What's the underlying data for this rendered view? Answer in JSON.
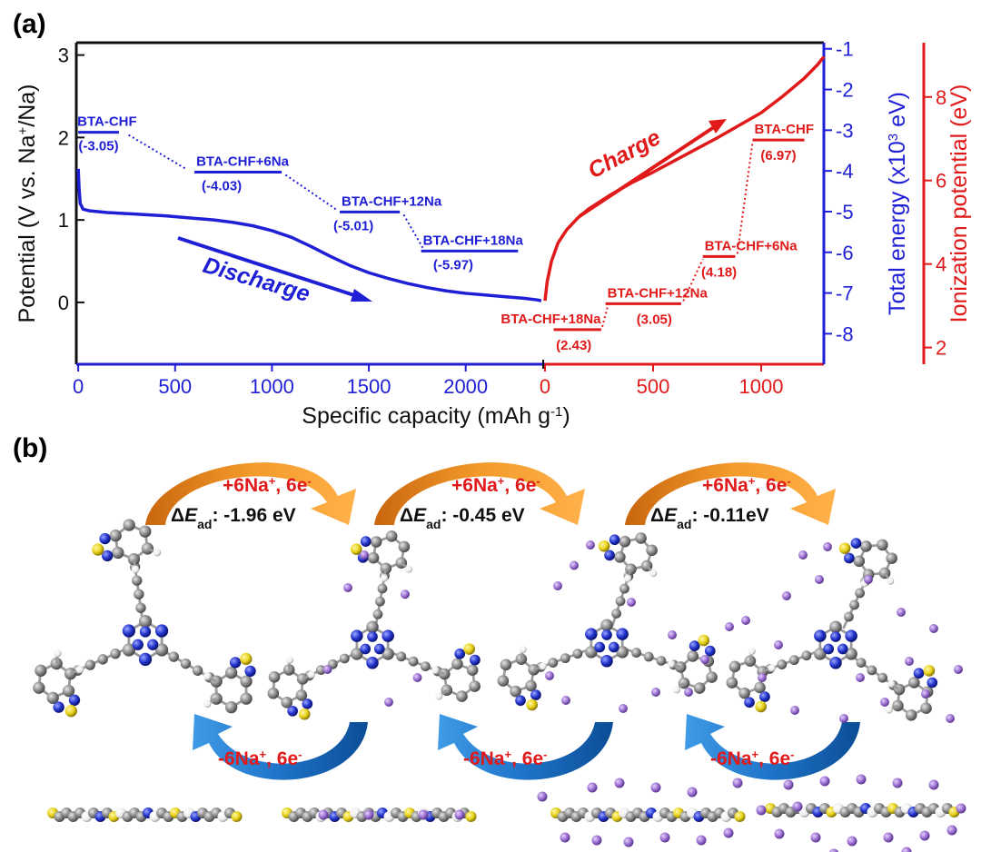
{
  "panel_a_label": "(a)",
  "panel_b_label": "(b)",
  "chart_data": {
    "type": "line",
    "title": "",
    "xlabel": "Specific capacity (mAh g-1)",
    "xlabel_parts": {
      "main": "Specific capacity (mAh g",
      "sup": "-1",
      "close": ")"
    },
    "ylabel_left": "Potential (V vs. Na+/Na)",
    "ylabel_left_parts": {
      "main": "Potential (V vs. Na",
      "sup": "+",
      "close": "/Na)"
    },
    "ylabel_mid": "Total energy (x103 eV)",
    "ylabel_mid_parts": {
      "main": "Total energy (x10",
      "sup": "3",
      "close": " eV)"
    },
    "ylabel_right": "Ionization potential (eV)",
    "ylim_left": [
      -0.75,
      3.15
    ],
    "ylim_mid": [
      -8.75,
      -0.85
    ],
    "ylim_right": [
      1.6,
      9.3
    ],
    "left_ticks": [
      0,
      1,
      2,
      3
    ],
    "mid_ticks": [
      -1,
      -2,
      -3,
      -4,
      -5,
      -6,
      -7,
      -8
    ],
    "right_ticks": [
      2,
      4,
      6,
      8
    ],
    "discharge_x_ticks": [
      0,
      500,
      1000,
      1500,
      2000
    ],
    "charge_x_ticks": [
      0,
      500,
      1000
    ],
    "discharge_xlim": [
      -10,
      2400
    ],
    "charge_xlim": [
      0,
      1290
    ],
    "series": [
      {
        "name": "Discharge",
        "color": "#1f1fd6",
        "x": [
          0,
          4,
          10,
          25,
          60,
          150,
          300,
          450,
          600,
          700,
          800,
          900,
          1000,
          1100,
          1200,
          1300,
          1400,
          1500,
          1600,
          1700,
          1800,
          1900,
          2000,
          2100,
          2200,
          2300,
          2370,
          2390
        ],
        "y": [
          1.62,
          1.4,
          1.2,
          1.13,
          1.11,
          1.09,
          1.07,
          1.05,
          1.02,
          1.0,
          0.97,
          0.93,
          0.87,
          0.79,
          0.68,
          0.56,
          0.45,
          0.36,
          0.29,
          0.23,
          0.18,
          0.14,
          0.11,
          0.09,
          0.07,
          0.05,
          0.03,
          0.02
        ]
      },
      {
        "name": "Charge",
        "color": "#e01a1a",
        "x": [
          0,
          10,
          30,
          60,
          100,
          150,
          200,
          300,
          400,
          500,
          600,
          700,
          800,
          900,
          1000,
          1100,
          1200,
          1260,
          1290
        ],
        "y": [
          0.02,
          0.25,
          0.5,
          0.72,
          0.88,
          1.02,
          1.13,
          1.3,
          1.45,
          1.58,
          1.72,
          1.86,
          2.0,
          2.15,
          2.3,
          2.5,
          2.72,
          2.88,
          2.98
        ]
      }
    ],
    "discharge_levels": [
      {
        "name": "BTA-CHF",
        "value_label": "(-3.05)",
        "energy": -3.05,
        "x0": 0,
        "x1": 210,
        "link_to_next": [
          260,
          560
        ]
      },
      {
        "name": "BTA-CHF+6Na",
        "value_label": "(-4.03)",
        "energy": -4.03,
        "x0": 600,
        "x1": 1050,
        "link_to_next": [
          1070,
          1330
        ]
      },
      {
        "name": "BTA-CHF+12Na",
        "value_label": "(-5.01)",
        "energy": -5.01,
        "x0": 1350,
        "x1": 1660,
        "link_to_next": [
          1680,
          1780
        ]
      },
      {
        "name": "BTA-CHF+18Na",
        "value_label": "(-5.97)",
        "energy": -5.97,
        "x0": 1770,
        "x1": 2270
      }
    ],
    "charge_levels": [
      {
        "name": "BTA-CHF+18Na",
        "value_label": "(2.43)",
        "ip": 2.43,
        "x0": 40,
        "x1": 260,
        "link_to_next": [
          265,
          290
        ]
      },
      {
        "name": "BTA-CHF+12Na",
        "value_label": "(3.05)",
        "ip": 3.05,
        "x0": 280,
        "x1": 630,
        "link_to_next": [
          640,
          730
        ]
      },
      {
        "name": "BTA-CHF+6Na",
        "value_label": "(4.18)",
        "ip": 4.18,
        "x0": 730,
        "x1": 880,
        "link_to_next": [
          890,
          960
        ]
      },
      {
        "name": "BTA-CHF",
        "value_label": "(6.97)",
        "ip": 6.97,
        "x0": 960,
        "x1": 1200
      }
    ],
    "annotations": {
      "discharge": "Discharge",
      "charge": "Charge"
    }
  },
  "panel_b": {
    "forward": [
      {
        "ion": "+6Na",
        "ion_sup": "+",
        "electrons": ", 6e",
        "electrons_sup": "-",
        "delta_prefix": "ΔE",
        "delta_sub": "ad",
        "delta_value": ": -1.96 eV"
      },
      {
        "ion": "+6Na",
        "ion_sup": "+",
        "electrons": ", 6e",
        "electrons_sup": "-",
        "delta_prefix": "ΔE",
        "delta_sub": "ad",
        "delta_value": ": -0.45 eV"
      },
      {
        "ion": "+6Na",
        "ion_sup": "+",
        "electrons": ", 6e",
        "electrons_sup": "-",
        "delta_prefix": "ΔE",
        "delta_sub": "ad",
        "delta_value": ": -0.11eV"
      }
    ],
    "reverse": [
      {
        "ion": "-6Na",
        "ion_sup": "+",
        "electrons": ", 6e",
        "electrons_sup": "-"
      },
      {
        "ion": "-6Na",
        "ion_sup": "+",
        "electrons": ", 6e",
        "electrons_sup": "-"
      },
      {
        "ion": "-6Na",
        "ion_sup": "+",
        "electrons": ", 6e",
        "electrons_sup": "-"
      }
    ],
    "colors": {
      "forward_arrow": "#f08a1c",
      "reverse_arrow": "#1e73c8",
      "carbon": "#8a8a8a",
      "nitrogen": "#2233cc",
      "sulfur": "#e8d21a",
      "hydrogen": "#f4f4f4",
      "sodium": "#9b6fd1"
    }
  }
}
